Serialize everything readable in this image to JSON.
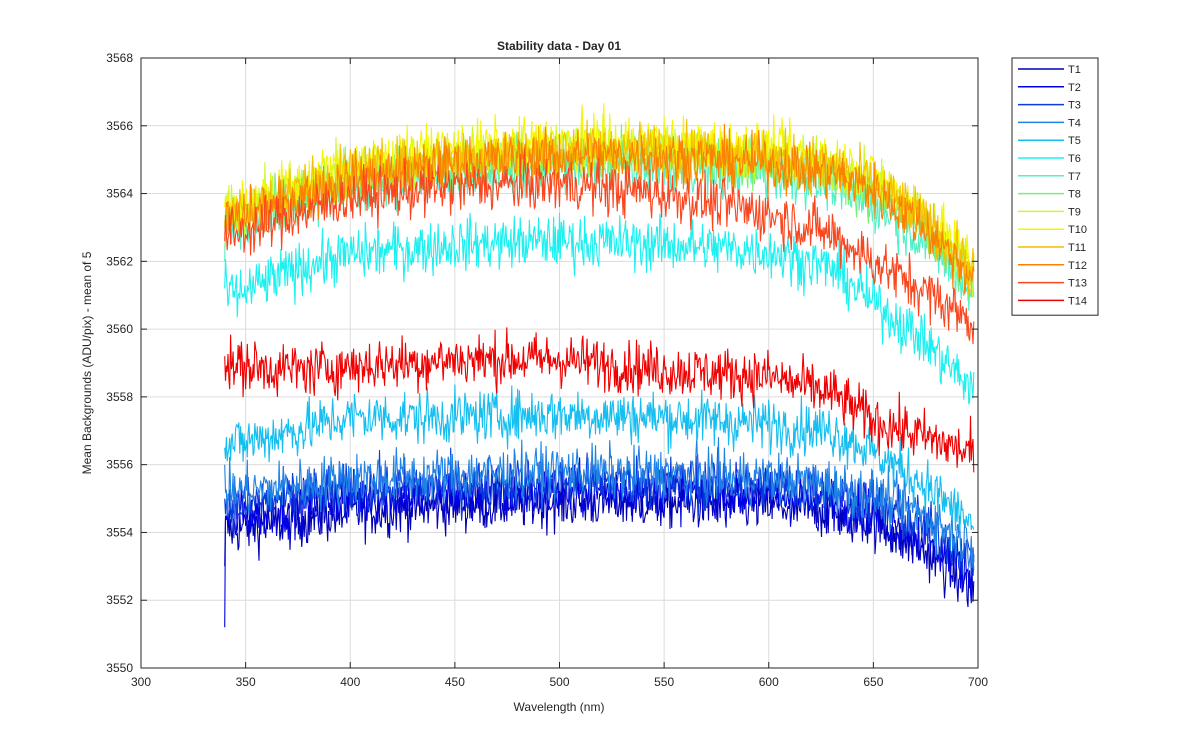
{
  "chart_data": {
    "type": "line",
    "title": "Stability data - Day 01",
    "xlabel": "Wavelength (nm)",
    "ylabel": "Mean Backgrounds (ADU/pix) - mean of 5",
    "xlim": [
      300,
      700
    ],
    "ylim": [
      3550,
      3568
    ],
    "xticks": [
      300,
      350,
      400,
      450,
      500,
      550,
      600,
      650,
      700
    ],
    "yticks": [
      3550,
      3552,
      3554,
      3556,
      3558,
      3560,
      3562,
      3564,
      3566,
      3568
    ],
    "grid": true,
    "legend_position": "outside-top-right",
    "x_data_range": [
      340,
      698
    ],
    "series": [
      {
        "name": "T1",
        "color": "#0000B4",
        "start": 3553.0,
        "x": [
          345,
          380,
          400,
          450,
          500,
          550,
          600,
          630,
          650,
          675,
          698
        ],
        "values": [
          3554.1,
          3554.4,
          3554.6,
          3554.8,
          3554.9,
          3554.9,
          3554.8,
          3554.6,
          3554.3,
          3553.4,
          3552.3
        ]
      },
      {
        "name": "T2",
        "color": "#0000E6",
        "start": 3551.2,
        "x": [
          345,
          380,
          400,
          450,
          500,
          550,
          600,
          630,
          650,
          675,
          698
        ],
        "values": [
          3554.5,
          3554.8,
          3555.0,
          3555.1,
          3555.2,
          3555.2,
          3555.1,
          3554.9,
          3554.6,
          3553.8,
          3552.8
        ]
      },
      {
        "name": "T3",
        "color": "#0A3CDC",
        "start": 3555.0,
        "x": [
          345,
          380,
          400,
          450,
          500,
          550,
          600,
          630,
          650,
          675,
          698
        ],
        "values": [
          3554.8,
          3555.1,
          3555.3,
          3555.4,
          3555.5,
          3555.5,
          3555.4,
          3555.2,
          3554.9,
          3554.2,
          3553.2
        ]
      },
      {
        "name": "T4",
        "color": "#1E82E6",
        "start": 3556.0,
        "x": [
          345,
          380,
          400,
          450,
          500,
          550,
          600,
          630,
          650,
          675,
          698
        ],
        "values": [
          3555.2,
          3555.4,
          3555.6,
          3555.7,
          3555.8,
          3555.7,
          3555.6,
          3555.4,
          3555.1,
          3554.5,
          3553.6
        ]
      },
      {
        "name": "T5",
        "color": "#14BEF0",
        "start": 3556.5,
        "x": [
          345,
          380,
          400,
          450,
          500,
          550,
          600,
          630,
          650,
          675,
          698
        ],
        "values": [
          3556.6,
          3557.1,
          3557.4,
          3557.4,
          3557.5,
          3557.4,
          3557.2,
          3557.0,
          3556.4,
          3555.4,
          3554.2
        ]
      },
      {
        "name": "T6",
        "color": "#1EF0F0",
        "start": 3561.2,
        "x": [
          345,
          380,
          400,
          450,
          500,
          550,
          600,
          630,
          650,
          675,
          698
        ],
        "values": [
          3561.0,
          3561.9,
          3562.2,
          3562.5,
          3562.6,
          3562.5,
          3562.3,
          3561.8,
          3560.8,
          3559.6,
          3558.2
        ]
      },
      {
        "name": "T7",
        "color": "#50F0C8",
        "start": 3562.0,
        "x": [
          345,
          380,
          400,
          450,
          500,
          550,
          600,
          630,
          650,
          675,
          698
        ],
        "values": [
          3563.1,
          3563.9,
          3564.2,
          3564.6,
          3564.8,
          3564.8,
          3564.6,
          3564.3,
          3563.7,
          3562.6,
          3561.0
        ]
      },
      {
        "name": "T8",
        "color": "#78F078",
        "start": 3562.4,
        "x": [
          345,
          380,
          400,
          450,
          500,
          550,
          600,
          630,
          650,
          675,
          698
        ],
        "values": [
          3563.3,
          3564.1,
          3564.5,
          3564.9,
          3565.1,
          3565.1,
          3564.9,
          3564.6,
          3564.0,
          3562.9,
          3561.3
        ]
      },
      {
        "name": "T9",
        "color": "#C8FA32",
        "start": 3563.0,
        "x": [
          345,
          380,
          400,
          450,
          500,
          550,
          600,
          630,
          650,
          675,
          698
        ],
        "values": [
          3563.5,
          3564.3,
          3564.7,
          3565.1,
          3565.3,
          3565.3,
          3565.1,
          3564.8,
          3564.3,
          3563.2,
          3561.7
        ]
      },
      {
        "name": "T10",
        "color": "#F5F500",
        "start": 3563.6,
        "x": [
          345,
          380,
          400,
          450,
          500,
          550,
          600,
          630,
          650,
          675,
          698
        ],
        "values": [
          3563.6,
          3564.4,
          3564.8,
          3565.3,
          3565.5,
          3565.5,
          3565.3,
          3565.0,
          3564.5,
          3563.4,
          3561.9
        ]
      },
      {
        "name": "T11",
        "color": "#F5BE00",
        "start": 3563.2,
        "x": [
          345,
          380,
          400,
          450,
          500,
          550,
          600,
          630,
          650,
          675,
          698
        ],
        "values": [
          3563.4,
          3564.2,
          3564.6,
          3565.1,
          3565.3,
          3565.3,
          3565.1,
          3564.8,
          3564.3,
          3563.2,
          3561.7
        ]
      },
      {
        "name": "T12",
        "color": "#FA8200",
        "start": 3562.8,
        "x": [
          345,
          380,
          400,
          450,
          500,
          550,
          600,
          630,
          650,
          675,
          698
        ],
        "values": [
          3563.2,
          3564.0,
          3564.4,
          3564.9,
          3565.1,
          3565.1,
          3564.9,
          3564.6,
          3564.1,
          3563.0,
          3561.5
        ]
      },
      {
        "name": "T13",
        "color": "#FA461E",
        "start": 3562.6,
        "x": [
          345,
          380,
          400,
          450,
          500,
          550,
          600,
          630,
          650,
          675,
          698
        ],
        "values": [
          3562.8,
          3563.5,
          3563.9,
          3564.2,
          3564.3,
          3564.0,
          3563.4,
          3562.8,
          3562.0,
          3561.1,
          3560.2
        ]
      },
      {
        "name": "T14",
        "color": "#F00000",
        "start": 3559.2,
        "x": [
          345,
          380,
          400,
          450,
          500,
          550,
          600,
          630,
          650,
          675,
          698
        ],
        "values": [
          3558.9,
          3558.8,
          3558.9,
          3559.1,
          3559.1,
          3558.8,
          3558.6,
          3558.1,
          3557.3,
          3556.8,
          3556.3
        ]
      }
    ]
  }
}
